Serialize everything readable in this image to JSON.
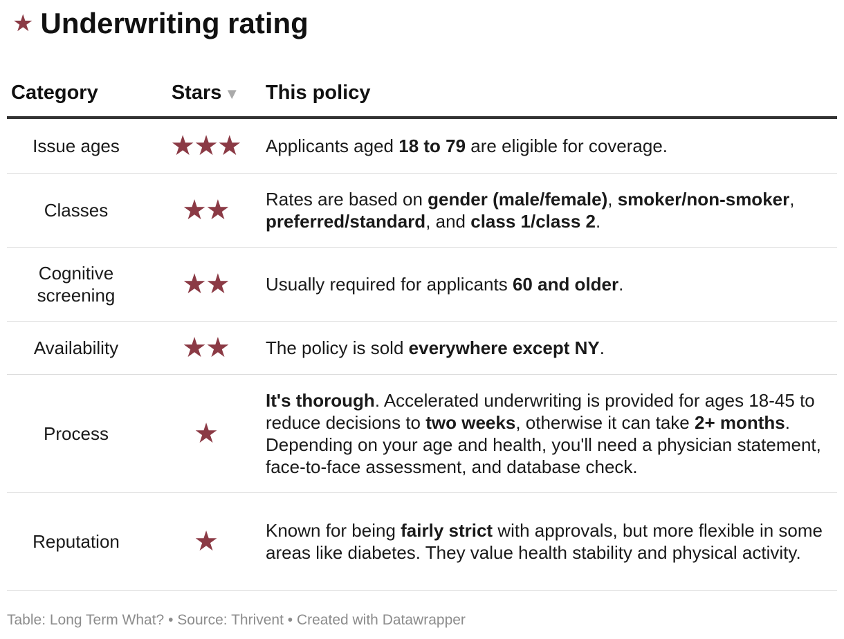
{
  "title": {
    "icon": "star-icon",
    "text": "Underwriting rating"
  },
  "colors": {
    "star": "#8b3a45",
    "rule": "#333333",
    "muted": "#8c8c8c"
  },
  "table": {
    "headers": {
      "category": "Category",
      "stars": "Stars",
      "policy": "This policy"
    },
    "rows": [
      {
        "category": "Issue ages",
        "stars": "★★★",
        "policy": [
          {
            "t": "Applicants aged "
          },
          {
            "t": "18 to 79",
            "b": true
          },
          {
            "t": " are eligible for coverage."
          }
        ]
      },
      {
        "category": "Classes",
        "stars": "★★",
        "policy": [
          {
            "t": "Rates are based on "
          },
          {
            "t": "gender (male/female)",
            "b": true
          },
          {
            "t": ", "
          },
          {
            "t": "smoker/non-smoker",
            "b": true
          },
          {
            "t": ", "
          },
          {
            "t": "preferred/standard",
            "b": true
          },
          {
            "t": ", and "
          },
          {
            "t": "class 1/class 2",
            "b": true
          },
          {
            "t": "."
          }
        ]
      },
      {
        "category": "Cognitive screening",
        "stars": "★★",
        "policy": [
          {
            "t": "Usually required for applicants "
          },
          {
            "t": "60 and older",
            "b": true
          },
          {
            "t": "."
          }
        ]
      },
      {
        "category": "Availability",
        "stars": "★★",
        "policy": [
          {
            "t": "The policy is sold "
          },
          {
            "t": "everywhere except NY",
            "b": true
          },
          {
            "t": "."
          }
        ]
      },
      {
        "category": "Process",
        "stars": "★",
        "policy": [
          {
            "t": "It's thorough",
            "b": true
          },
          {
            "t": ". Accelerated underwriting is provided for ages 18-45 to reduce decisions to "
          },
          {
            "t": "two weeks",
            "b": true
          },
          {
            "t": ", otherwise it can take "
          },
          {
            "t": "2+ months",
            "b": true
          },
          {
            "t": ". Depending on your age and health, you'll need a physician statement, face-to-face assessment, and database check."
          }
        ]
      },
      {
        "category": "Reputation",
        "stars": "★",
        "policy": [
          {
            "t": "Known for being "
          },
          {
            "t": "fairly strict",
            "b": true
          },
          {
            "t": " with approvals, but more flexible in some areas like diabetes. They value health stability and physical activity."
          }
        ]
      }
    ]
  },
  "footer": "Table: Long Term What? • Source: Thrivent • Created with Datawrapper"
}
